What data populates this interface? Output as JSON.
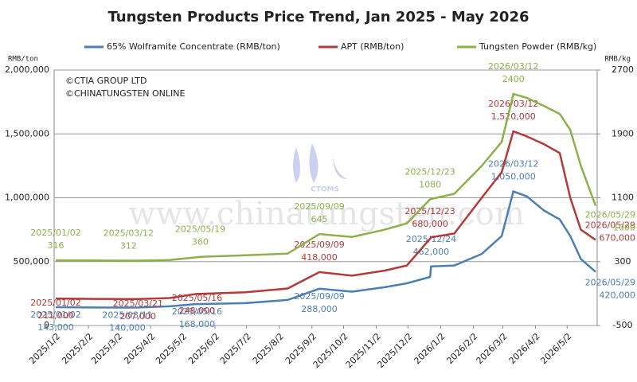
{
  "chart_data": {
    "type": "line",
    "title": "Tungsten Products Price Trend, Jan 2025 - May 2026",
    "y_axis_label": "RMB/ton",
    "y2_axis_label": "RMB/kg",
    "annotations": [
      "©CTIA GROUP LTD",
      "©CHINATUNGSTEN ONLINE"
    ],
    "watermark": "www.chinatungsten.com",
    "logo": "CTOMS",
    "x": [
      "2025/01/02",
      "2025/02/10",
      "2025/03/11",
      "2025/03/12",
      "2025/03/21",
      "2025/04/20",
      "2025/05/16",
      "2025/05/19",
      "2025/07/01",
      "2025/08/10",
      "2025/09/09",
      "2025/10/10",
      "2025/11/10",
      "2025/12/01",
      "2025/12/23",
      "2025/12/24",
      "2026/01/15",
      "2026/02/10",
      "2026/03/01",
      "2026/03/12",
      "2026/03/25",
      "2026/04/10",
      "2026/04/25",
      "2026/05/05",
      "2026/05/15",
      "2026/05/29"
    ],
    "xlim": [
      "2025/01/02",
      "2026/05/29"
    ],
    "xticks": [
      "2025/1/2",
      "2025/2/2",
      "2025/3/2",
      "2025/4/2",
      "2025/5/2",
      "2025/6/2",
      "2025/7/2",
      "2025/8/2",
      "2025/9/2",
      "2025/10/2",
      "2025/11/2",
      "2025/12/2",
      "2026/1/2",
      "2026/2/2",
      "2026/3/2",
      "2026/4/2",
      "2026/5/2"
    ],
    "ylim": [
      0,
      2000000
    ],
    "yticks": [
      0,
      {
        "value": 500000,
        "label": "500,000"
      },
      {
        "value": 1000000,
        "label": "1,000,000"
      },
      {
        "value": 1500000,
        "label": "1,500,000"
      },
      {
        "value": 2000000,
        "label": "2,000,000"
      }
    ],
    "y2lim": [
      -500,
      2700
    ],
    "y2ticks": [
      -500,
      300,
      1100,
      1900,
      2700
    ],
    "grid": true,
    "legend": "top",
    "series": [
      {
        "name": "65% Wolframite Concentrate (RMB/ton)",
        "color": "#4a7fb5",
        "values": [
          143000,
          141000,
          140000,
          140000,
          141000,
          150000,
          168000,
          168000,
          175000,
          200000,
          288000,
          265000,
          300000,
          330000,
          380000,
          462000,
          470000,
          560000,
          700000,
          1050000,
          1010000,
          900000,
          830000,
          700000,
          520000,
          420000
        ],
        "value_labels": [
          "143,000",
          null,
          "140,000",
          null,
          null,
          null,
          "168,000",
          null,
          null,
          null,
          "288,000",
          null,
          null,
          null,
          null,
          "462,000",
          null,
          null,
          null,
          "1,050,000",
          null,
          null,
          null,
          null,
          null,
          "420,000"
        ]
      },
      {
        "name": "APT (RMB/ton)",
        "color": "#b33a3a",
        "values": [
          211000,
          208000,
          207000,
          207000,
          207000,
          215000,
          248000,
          248000,
          260000,
          290000,
          418000,
          390000,
          430000,
          470000,
          680000,
          690000,
          720000,
          1000000,
          1200000,
          1520000,
          1480000,
          1420000,
          1350000,
          1000000,
          750000,
          670000
        ],
        "value_labels": [
          "211,000",
          null,
          null,
          null,
          "207,000",
          null,
          "248,000",
          null,
          null,
          null,
          "418,000",
          null,
          null,
          null,
          "680,000",
          null,
          null,
          null,
          null,
          "1,520,000",
          null,
          null,
          null,
          null,
          null,
          "670,000"
        ]
      },
      {
        "name": "Tungsten Powder (RMB/kg)",
        "color": "#8db04a",
        "axis": "y2",
        "values": [
          316,
          314,
          312,
          312,
          312,
          320,
          355,
          360,
          380,
          400,
          645,
          610,
          700,
          780,
          1080,
          1085,
          1150,
          1500,
          1800,
          2400,
          2350,
          2250,
          2150,
          1950,
          1500,
          1000
        ],
        "value_labels": [
          "316",
          null,
          null,
          "312",
          null,
          null,
          null,
          "360",
          null,
          null,
          "645",
          null,
          null,
          null,
          "1080",
          null,
          null,
          null,
          null,
          "2400",
          null,
          null,
          null,
          null,
          null,
          "1000"
        ]
      }
    ]
  }
}
